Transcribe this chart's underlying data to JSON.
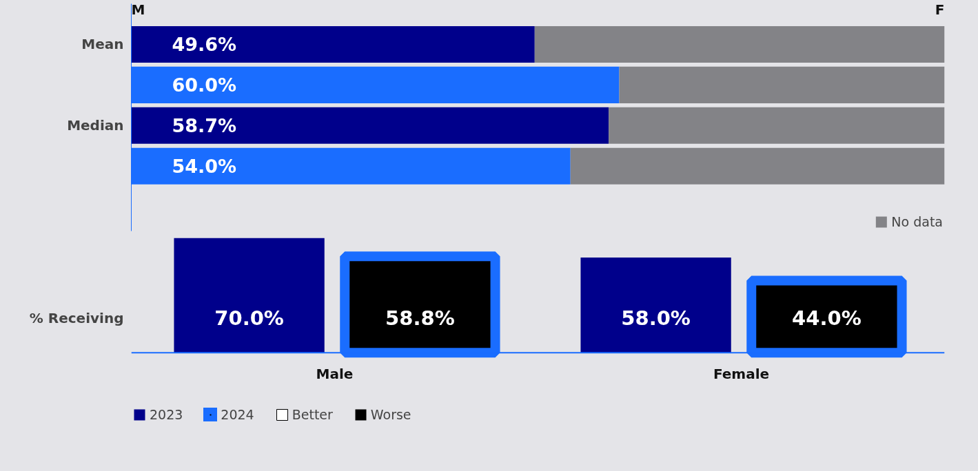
{
  "chart_data": [
    {
      "type": "bar",
      "orientation": "horizontal",
      "stacked": true,
      "categories": [
        "Mean",
        null,
        "Median",
        null
      ],
      "annotations": [
        "M",
        "F"
      ],
      "legend": "bottom right",
      "series": [
        {
          "color": "#00008b",
          "values": [
            49.6,
            null,
            58.7,
            null
          ],
          "value_labels": [
            "49.6%",
            null,
            "58.7%",
            null
          ]
        },
        {
          "color": "#1a6dff",
          "values": [
            null,
            60.0,
            null,
            54.0
          ],
          "value_labels": [
            null,
            "60.0%",
            null,
            "54.0%"
          ]
        },
        {
          "name": "No data",
          "color": "#838387",
          "values": [
            50.4,
            40.0,
            41.3,
            46.0
          ]
        }
      ]
    },
    {
      "type": "bar",
      "categories": [
        "Male",
        "Female"
      ],
      "ylabel": "% Receiving",
      "legend": "bottom left",
      "series": [
        {
          "name": "2023",
          "color": "#00008b",
          "values": [
            70.0,
            58.0
          ],
          "value_labels": [
            "70.0%",
            "58.0%"
          ]
        },
        {
          "name": "2024",
          "color": "#1a6dff",
          "colors": [
            "#000000",
            "#000000"
          ],
          "values": [
            58.8,
            44.0
          ],
          "value_labels": [
            "58.8%",
            "44.0%"
          ]
        },
        {
          "name": "Better",
          "color": "#ffffff",
          "values": [
            null,
            null
          ]
        },
        {
          "name": "Worse",
          "color": "#000000",
          "values": [
            null,
            null
          ]
        }
      ]
    }
  ]
}
